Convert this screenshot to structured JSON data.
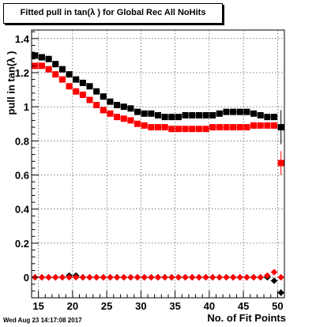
{
  "title": "Fitted pull in tan(λ ) for Global Rec All NoHits",
  "timestamp": "Wed Aug 23 14:17:08 2017",
  "chart_data": {
    "type": "scatter",
    "title": "Fitted pull in tan(λ ) for Global Rec All NoHits",
    "xlabel": "No. of Fit Points",
    "ylabel": "pull in tan(λ )",
    "xlim": [
      14,
      51
    ],
    "ylim": [
      -0.12,
      1.45
    ],
    "xticks": [
      15,
      20,
      25,
      30,
      35,
      40,
      45,
      50
    ],
    "yticks": [
      0,
      0.2,
      0.4,
      0.6,
      0.8,
      1,
      1.2,
      1.4
    ],
    "yticklabels": [
      "0",
      "0.2",
      "0.4",
      "0.6",
      "0.8",
      "1",
      "1.2",
      "1.4"
    ],
    "grid": true,
    "legend": "none",
    "x": [
      14.5,
      15.5,
      16.5,
      17.5,
      18.5,
      19.5,
      20.5,
      21.5,
      22.5,
      23.5,
      24.5,
      25.5,
      26.5,
      27.5,
      28.5,
      29.5,
      30.5,
      31.5,
      32.5,
      33.5,
      34.5,
      35.5,
      36.5,
      37.5,
      38.5,
      39.5,
      40.5,
      41.5,
      42.5,
      43.5,
      44.5,
      45.5,
      46.5,
      47.5,
      48.5,
      49.5,
      50.5
    ],
    "series": [
      {
        "marker": "square",
        "color": "#000000",
        "values": [
          1.3,
          1.29,
          1.28,
          1.25,
          1.22,
          1.19,
          1.16,
          1.14,
          1.12,
          1.09,
          1.06,
          1.03,
          1.01,
          1.0,
          0.99,
          0.97,
          0.96,
          0.96,
          0.95,
          0.94,
          0.94,
          0.94,
          0.95,
          0.95,
          0.95,
          0.95,
          0.95,
          0.96,
          0.97,
          0.97,
          0.97,
          0.97,
          0.96,
          0.95,
          0.94,
          0.94,
          0.88
        ],
        "errors": [
          0.015,
          0.012,
          0.01,
          0.01,
          0.01,
          0.01,
          0.01,
          0.01,
          0.01,
          0.01,
          0.01,
          0.01,
          0.01,
          0.01,
          0.01,
          0.01,
          0.01,
          0.01,
          0.01,
          0.01,
          0.01,
          0.01,
          0.01,
          0.01,
          0.01,
          0.01,
          0.01,
          0.01,
          0.01,
          0.01,
          0.01,
          0.01,
          0.01,
          0.01,
          0.01,
          0.015,
          0.1
        ]
      },
      {
        "marker": "square",
        "color": "#ff0000",
        "values": [
          1.24,
          1.24,
          1.22,
          1.19,
          1.16,
          1.12,
          1.09,
          1.07,
          1.04,
          1.01,
          0.98,
          0.96,
          0.94,
          0.93,
          0.92,
          0.9,
          0.89,
          0.88,
          0.88,
          0.88,
          0.87,
          0.87,
          0.87,
          0.87,
          0.87,
          0.87,
          0.88,
          0.88,
          0.88,
          0.88,
          0.88,
          0.88,
          0.89,
          0.89,
          0.89,
          0.89,
          0.67
        ],
        "errors": [
          0.015,
          0.012,
          0.01,
          0.01,
          0.01,
          0.01,
          0.01,
          0.01,
          0.01,
          0.01,
          0.01,
          0.01,
          0.01,
          0.01,
          0.01,
          0.01,
          0.01,
          0.01,
          0.01,
          0.01,
          0.01,
          0.01,
          0.01,
          0.01,
          0.01,
          0.01,
          0.01,
          0.01,
          0.01,
          0.01,
          0.01,
          0.01,
          0.01,
          0.01,
          0.01,
          0.012,
          0.07
        ]
      },
      {
        "marker": "diamond",
        "color": "#000000",
        "values": [
          0.0,
          0.0,
          0.0,
          0.0,
          0.0,
          0.01,
          0.01,
          0.0,
          0.0,
          0.0,
          0.0,
          0.0,
          0.0,
          0.0,
          0.0,
          0.0,
          0.0,
          0.0,
          0.0,
          0.0,
          0.0,
          0.0,
          0.0,
          0.0,
          0.0,
          0.0,
          0.0,
          0.0,
          0.0,
          0.0,
          0.0,
          0.0,
          0.0,
          0.0,
          0.0,
          -0.02,
          -0.09
        ],
        "errors": [
          0,
          0,
          0,
          0,
          0,
          0,
          0,
          0,
          0,
          0,
          0,
          0,
          0,
          0,
          0,
          0,
          0,
          0,
          0,
          0,
          0,
          0,
          0,
          0,
          0,
          0,
          0,
          0,
          0,
          0,
          0,
          0,
          0,
          0,
          0,
          0.01,
          0.02
        ]
      },
      {
        "marker": "diamond",
        "color": "#ff0000",
        "values": [
          0.0,
          0.0,
          0.0,
          0.0,
          0.0,
          0.0,
          0.0,
          0.0,
          0.0,
          0.0,
          0.0,
          0.0,
          0.0,
          0.0,
          0.0,
          0.0,
          0.0,
          0.0,
          0.0,
          0.0,
          0.0,
          0.0,
          0.0,
          0.0,
          0.0,
          0.0,
          0.0,
          0.0,
          0.0,
          0.0,
          0.0,
          0.0,
          0.0,
          0.0,
          0.01,
          0.03,
          0.0
        ],
        "errors": [
          0,
          0,
          0,
          0,
          0,
          0,
          0,
          0,
          0,
          0,
          0,
          0,
          0,
          0,
          0,
          0,
          0,
          0,
          0,
          0,
          0,
          0,
          0,
          0,
          0,
          0,
          0,
          0,
          0,
          0,
          0,
          0,
          0,
          0,
          0,
          0.01,
          0.01
        ]
      }
    ]
  }
}
